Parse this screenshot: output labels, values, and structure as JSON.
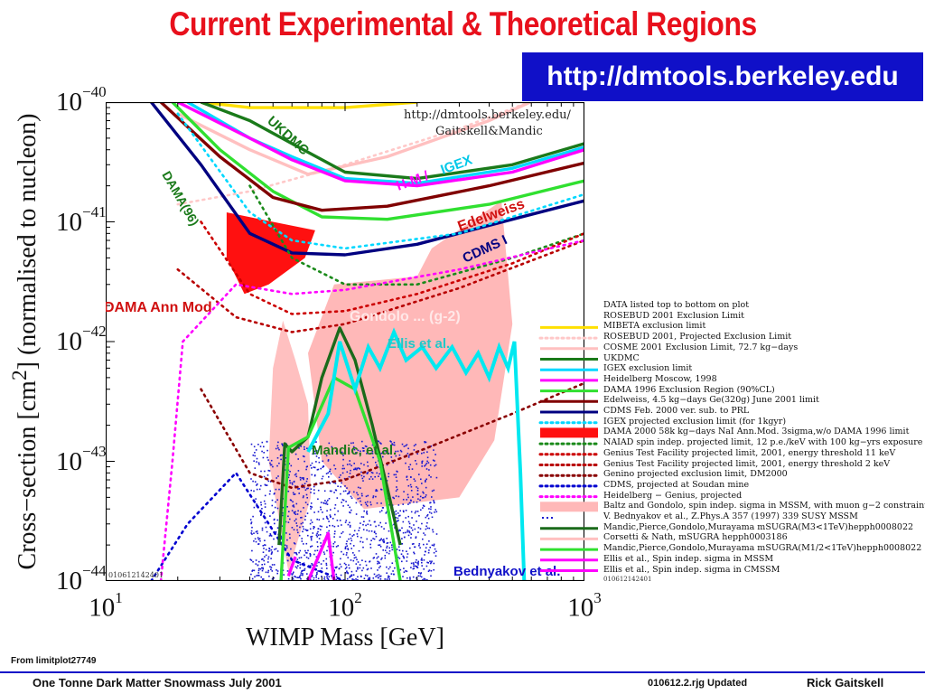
{
  "slide": {
    "title": "Current Experimental & Theoretical Regions",
    "url_box": "http://dmtools.berkeley.edu",
    "from_note": "From limitplot27749",
    "footer_left": "One Tonne Dark Matter Snowmass July 2001",
    "footer_mid": "010612.2.rjg Updated",
    "footer_right": "Rick Gaitskell",
    "colors": {
      "title": "#e8101c",
      "url_box_bg": "#1010c8",
      "footer_rule": "#1010c8"
    }
  },
  "chart_data": {
    "type": "line",
    "xlabel": "WIMP Mass [GeV]",
    "ylabel_parts": [
      "Cross−section [cm",
      "2",
      "] (normalised to nucleon)"
    ],
    "x_scale": "log",
    "y_scale": "log",
    "xlim": [
      10,
      1000
    ],
    "ylim": [
      1e-44,
      1e-40
    ],
    "x_ticks": [
      {
        "value": 10,
        "base": "10",
        "exp": "1"
      },
      {
        "value": 100,
        "base": "10",
        "exp": "2"
      },
      {
        "value": 1000,
        "base": "10",
        "exp": "3"
      }
    ],
    "y_ticks": [
      {
        "value": 1e-40,
        "base": "10",
        "exp": "−40"
      },
      {
        "value": 1e-41,
        "base": "10",
        "exp": "−41"
      },
      {
        "value": 1e-42,
        "base": "10",
        "exp": "−42"
      },
      {
        "value": 1e-43,
        "base": "10",
        "exp": "−43"
      },
      {
        "value": 1e-44,
        "base": "10",
        "exp": "−44"
      }
    ],
    "plot_header": [
      "http://dmtools.berkeley.edu/",
      "Gaitskell&Mandic"
    ],
    "plot_id": "010612142401",
    "series": [
      {
        "name": "MIBETA exclusion limit",
        "color": "#ffe000",
        "style": "solid",
        "points": [
          [
            25,
            1e-40
          ],
          [
            40,
            9e-41
          ],
          [
            100,
            9e-41
          ],
          [
            200,
            1e-40
          ]
        ]
      },
      {
        "name": "ROSEBUD 2001, Projected Exclusion Limit",
        "color": "#ffc8c8",
        "style": "dotted",
        "points": [
          [
            20,
            1.4e-41
          ],
          [
            40,
            1.8e-41
          ],
          [
            100,
            3e-41
          ],
          [
            300,
            6e-41
          ],
          [
            1000,
            1.5e-40
          ]
        ]
      },
      {
        "name": "COSME 2001 Exclusion Limit, 72.7 kg−days",
        "color": "#ffc0c0",
        "style": "solid",
        "points": [
          [
            20,
            8e-41
          ],
          [
            40,
            4e-41
          ],
          [
            70,
            2.5e-41
          ],
          [
            150,
            3.5e-41
          ],
          [
            400,
            7e-41
          ],
          [
            1000,
            1.6e-40
          ]
        ]
      },
      {
        "name": "UKDMC",
        "color": "#1a7a1a",
        "style": "solid",
        "points": [
          [
            25,
            1e-40
          ],
          [
            40,
            7e-41
          ],
          [
            60,
            4.5e-41
          ],
          [
            100,
            2.6e-41
          ],
          [
            200,
            2.3e-41
          ],
          [
            500,
            3e-41
          ],
          [
            1000,
            4.5e-41
          ]
        ]
      },
      {
        "name": "IGEX exclusion limit",
        "color": "#00d8ff",
        "style": "solid",
        "points": [
          [
            22,
            1e-40
          ],
          [
            40,
            5e-41
          ],
          [
            60,
            3.5e-41
          ],
          [
            100,
            2.3e-41
          ],
          [
            200,
            2.1e-41
          ],
          [
            500,
            2.8e-41
          ],
          [
            1000,
            4.2e-41
          ]
        ]
      },
      {
        "name": "Heidelberg Moscow, 1998",
        "color": "#ff00ff",
        "style": "solid",
        "points": [
          [
            20,
            1e-40
          ],
          [
            40,
            5e-41
          ],
          [
            60,
            3.3e-41
          ],
          [
            100,
            2.2e-41
          ],
          [
            200,
            2e-41
          ],
          [
            500,
            2.6e-41
          ],
          [
            1000,
            4e-41
          ]
        ]
      },
      {
        "name": "DAMA 1996 Exclusion Region (90%CL)",
        "color": "#30e030",
        "style": "solid",
        "points": [
          [
            19,
            1e-40
          ],
          [
            30,
            4e-41
          ],
          [
            50,
            1.8e-41
          ],
          [
            80,
            1.1e-41
          ],
          [
            150,
            1.05e-41
          ],
          [
            400,
            1.4e-41
          ],
          [
            1000,
            2.2e-41
          ]
        ]
      },
      {
        "name": "Edelweiss, 4.5 kg−days Ge(320g) June 2001 limit",
        "color": "#800000",
        "style": "solid",
        "points": [
          [
            17,
            1e-40
          ],
          [
            30,
            3.5e-41
          ],
          [
            50,
            1.6e-41
          ],
          [
            80,
            1.25e-41
          ],
          [
            150,
            1.35e-41
          ],
          [
            400,
            2e-41
          ],
          [
            1000,
            3.1e-41
          ]
        ]
      },
      {
        "name": "CDMS Feb. 2000 ver. sub. to PRL",
        "color": "#000080",
        "style": "solid",
        "points": [
          [
            15.5,
            1e-40
          ],
          [
            25,
            3e-41
          ],
          [
            40,
            8e-42
          ],
          [
            60,
            5.5e-42
          ],
          [
            100,
            5.3e-42
          ],
          [
            200,
            6.5e-42
          ],
          [
            500,
            1.05e-41
          ],
          [
            1000,
            1.5e-41
          ]
        ]
      },
      {
        "name": "IGEX projected exclusion limit (for 1kgyr)",
        "color": "#00d8ff",
        "style": "dotted",
        "points": [
          [
            20,
            8e-41
          ],
          [
            40,
            1.2e-41
          ],
          [
            60,
            7e-42
          ],
          [
            100,
            6e-42
          ],
          [
            300,
            8e-42
          ],
          [
            1000,
            1.7e-41
          ]
        ]
      },
      {
        "name": "NAIAD spin indep. projected limit, 12 p.e./keV with 100 kg−yrs exposure",
        "color": "#1a8a1a",
        "style": "dotted",
        "points": [
          [
            40,
            2e-41
          ],
          [
            60,
            5e-42
          ],
          [
            100,
            3e-42
          ],
          [
            200,
            3e-42
          ],
          [
            500,
            5e-42
          ],
          [
            1000,
            8e-42
          ]
        ]
      },
      {
        "name": "Genius Test Facility projected limit, 2001, energy threshold 11 keV",
        "color": "#cc0000",
        "style": "dotted",
        "points": [
          [
            25,
            1e-41
          ],
          [
            40,
            2.5e-42
          ],
          [
            60,
            1.7e-42
          ],
          [
            100,
            1.8e-42
          ],
          [
            200,
            2.5e-42
          ],
          [
            500,
            4.5e-42
          ],
          [
            1000,
            8e-42
          ]
        ]
      },
      {
        "name": "Genius Test Facility projected limit, 2001, energy threshold 2 keV",
        "color": "#b80000",
        "style": "dotted",
        "points": [
          [
            20,
            4e-42
          ],
          [
            35,
            1.6e-42
          ],
          [
            60,
            1.2e-42
          ],
          [
            100,
            1.4e-42
          ],
          [
            300,
            2.8e-42
          ],
          [
            1000,
            7e-42
          ]
        ]
      },
      {
        "name": "Genino projected exclusion limit, DM2000",
        "color": "#8a0000",
        "style": "dotted",
        "points": [
          [
            25,
            4e-43
          ],
          [
            40,
            8e-44
          ],
          [
            60,
            6e-44
          ],
          [
            100,
            7e-44
          ],
          [
            200,
            1.2e-43
          ],
          [
            500,
            2.5e-43
          ],
          [
            1000,
            4.5e-43
          ]
        ]
      },
      {
        "name": "CDMS, projected at Soudan mine",
        "color": "#0000d0",
        "style": "dotted",
        "points": [
          [
            15.5,
            1e-44
          ],
          [
            22,
            3e-44
          ],
          [
            35,
            8e-44
          ],
          [
            60,
            1.5e-44
          ],
          [
            100,
            1e-44
          ]
        ]
      },
      {
        "name": "Heidelberg − Genius, projected",
        "color": "#ff00ff",
        "style": "dotted",
        "points": [
          [
            17,
            1e-44
          ],
          [
            19,
            1e-43
          ],
          [
            21,
            1e-42
          ],
          [
            35,
            3e-42
          ],
          [
            60,
            2.5e-42
          ],
          [
            100,
            2.7e-42
          ],
          [
            300,
            4e-42
          ],
          [
            1000,
            7e-42
          ]
        ]
      },
      {
        "name": "Mandic,Pierce,Gondolo,Murayama mSUGRA(M3<1TeV)hepph0008022",
        "color": "#1a6a1a",
        "style": "solid",
        "points": [
          [
            53,
            2e-44
          ],
          [
            56,
            1.4e-43
          ],
          [
            60,
            1.2e-43
          ],
          [
            70,
            1.6e-43
          ],
          [
            80,
            5e-43
          ],
          [
            95,
            1.3e-42
          ],
          [
            110,
            7e-43
          ],
          [
            130,
            2e-43
          ],
          [
            150,
            6e-44
          ],
          [
            170,
            2e-44
          ]
        ]
      },
      {
        "name": "Mandic,Pierce,Gondolo,Murayama mSUGRA(M1/2<1TeV)hepph0008022",
        "color": "#30e030",
        "style": "solid",
        "points": [
          [
            54,
            1e-44
          ],
          [
            58,
            1.3e-43
          ],
          [
            70,
            1.6e-43
          ],
          [
            90,
            5e-43
          ],
          [
            110,
            4e-43
          ],
          [
            140,
            1e-43
          ],
          [
            170,
            1e-44
          ]
        ]
      },
      {
        "name": "Ellis et al., Spin indep. sigma in MSSM",
        "color": "#ff00ff",
        "style": "solid",
        "points": [
          [
            70,
            1e-44
          ],
          [
            85,
            2.5e-44
          ],
          [
            90,
            1e-44
          ]
        ]
      },
      {
        "name": "Ellis et al., Spin indep. sigma in CMSSM",
        "color": "#ff00ff",
        "style": "solid",
        "points": [
          [
            58,
            1.1e-44
          ],
          [
            62,
            1.6e-44
          ]
        ]
      }
    ],
    "regions": [
      {
        "name": "DAMA 2000 58k kg−days NaI Ann.Mod. 3sigma,w/o DAMA 1996 limit",
        "color": "#ff1010",
        "points": [
          [
            32,
            1.2e-41
          ],
          [
            50,
            1e-41
          ],
          [
            75,
            8.5e-42
          ],
          [
            68,
            5e-42
          ],
          [
            48,
            3e-42
          ],
          [
            38,
            2.5e-42
          ],
          [
            32,
            5e-42
          ]
        ]
      },
      {
        "name": "Baltz and Gondolo, spin indep. sigma in MSSM, with muon g−2 constraint",
        "color": "#ffb8b8",
        "points": [
          [
            90,
            3e-42
          ],
          [
            200,
            3.5e-42
          ],
          [
            230,
            6e-42
          ],
          [
            450,
            1.5e-41
          ],
          [
            500,
            1.4e-42
          ],
          [
            420,
            1.5e-43
          ],
          [
            300,
            5e-44
          ],
          [
            120,
            4e-44
          ],
          [
            80,
            1e-43
          ],
          [
            70,
            8e-43
          ]
        ]
      },
      {
        "name": "Corsetti & Nath, mSUGRA hepph0003186",
        "color": "#ffc0c0",
        "points": [
          [
            55,
            1.5e-42
          ],
          [
            62,
            7e-43
          ],
          [
            70,
            3e-43
          ],
          [
            72,
            5e-44
          ],
          [
            58,
            1.2e-44
          ],
          [
            48,
            1e-43
          ],
          [
            50,
            6e-43
          ]
        ]
      }
    ],
    "theory_band": {
      "name": "Ellis et al.",
      "color": "#00e8f0",
      "points": [
        [
          70,
          1.2e-43
        ],
        [
          85,
          2.5e-43
        ],
        [
          95,
          1e-42
        ],
        [
          110,
          4e-43
        ],
        [
          125,
          9e-43
        ],
        [
          140,
          6e-43
        ],
        [
          160,
          1.2e-42
        ],
        [
          180,
          7e-43
        ],
        [
          210,
          9e-43
        ],
        [
          240,
          6e-43
        ],
        [
          280,
          9e-43
        ],
        [
          320,
          5.5e-43
        ],
        [
          360,
          8e-43
        ],
        [
          400,
          5e-43
        ],
        [
          440,
          9e-43
        ],
        [
          480,
          6e-43
        ],
        [
          510,
          1e-42
        ],
        [
          540,
          8e-44
        ],
        [
          560,
          1e-44
        ]
      ]
    },
    "scatter_region": {
      "name": "Bednyakov et al.",
      "color": "#1818d0",
      "x_range": [
        40,
        240
      ],
      "y_range": [
        1e-44,
        1.5e-43
      ]
    },
    "annotations": [
      {
        "text": "UKDMC",
        "color": "#1a7a1a"
      },
      {
        "text": "DAMA(96)",
        "color": "#1a7a1a"
      },
      {
        "text": "H-M / ",
        "color": "#ff00ff"
      },
      {
        "text": "IGEX",
        "color": "#00c8e8"
      },
      {
        "text": "Edelweiss",
        "color": "#d01010"
      },
      {
        "text": "CDMS I",
        "color": "#000080"
      },
      {
        "text": "DAMA Ann Mod",
        "color": "#d01010"
      },
      {
        "text": "Gondolo ... (g-2)",
        "color": "#ffe8e8"
      },
      {
        "text": "Ellis et al.",
        "color": "#20c8c8"
      },
      {
        "text": "Mandic, et al.",
        "color": "#1a7a1a"
      },
      {
        "text": "Bednyakov et al.",
        "color": "#1010c8"
      }
    ],
    "legend": {
      "placement": "right",
      "title_lines": [
        "DATA listed top to bottom on plot",
        "ROSEBUD 2001 Exclusion Limit"
      ],
      "entries": [
        "MIBETA exclusion limit",
        "ROSEBUD 2001, Projected Exclusion Limit",
        "COSME 2001 Exclusion Limit, 72.7 kg−days",
        "UKDMC",
        "IGEX exclusion limit",
        "Heidelberg Moscow, 1998",
        "DAMA 1996 Exclusion Region (90%CL)",
        "Edelweiss, 4.5 kg−days Ge(320g) June 2001 limit",
        "CDMS Feb. 2000 ver. sub. to PRL",
        "IGEX projected exclusion limit (for 1kgyr)",
        "DAMA 2000 58k kg−days NaI Ann.Mod. 3sigma,w/o DAMA 1996 limit",
        "NAIAD spin indep. projected limit, 12 p.e./keV with 100 kg−yrs exposure",
        "Genius Test Facility projected limit, 2001, energy threshold 11 keV",
        "Genius Test Facility projected limit, 2001, energy threshold 2 keV",
        "Genino projected exclusion limit, DM2000",
        "CDMS, projected at Soudan mine",
        "Heidelberg − Genius, projected",
        "Baltz and Gondolo, spin indep. sigma in MSSM, with muon g−2 constraint",
        "V. Bednyakov et al., Z.Phys.A 357 (1997) 339 SUSY MSSM",
        "Mandic,Pierce,Gondolo,Murayama mSUGRA(M3<1TeV)hepph0008022",
        "Corsetti & Nath, mSUGRA hepph0003186",
        "Mandic,Pierce,Gondolo,Murayama mSUGRA(M1/2<1TeV)hepph0008022",
        "Ellis et al., Spin indep. sigma in MSSM",
        "Ellis et al., Spin indep. sigma in CMSSM"
      ],
      "swatches": [
        {
          "color": "#ffe000",
          "style": "solid"
        },
        {
          "color": "#ffc8c8",
          "style": "dotted"
        },
        {
          "color": "#ffc0c0",
          "style": "solid"
        },
        {
          "color": "#1a7a1a",
          "style": "solid"
        },
        {
          "color": "#00d8ff",
          "style": "solid"
        },
        {
          "color": "#ff00ff",
          "style": "solid"
        },
        {
          "color": "#30e030",
          "style": "solid"
        },
        {
          "color": "#800000",
          "style": "solid"
        },
        {
          "color": "#000080",
          "style": "solid"
        },
        {
          "color": "#00d8ff",
          "style": "dotted"
        },
        {
          "color": "#ff1010",
          "style": "fill"
        },
        {
          "color": "#1a8a1a",
          "style": "dotted"
        },
        {
          "color": "#cc0000",
          "style": "dotted"
        },
        {
          "color": "#b80000",
          "style": "dotted"
        },
        {
          "color": "#8a0000",
          "style": "dotted"
        },
        {
          "color": "#0000d0",
          "style": "dotted"
        },
        {
          "color": "#ff00ff",
          "style": "dotted"
        },
        {
          "color": "#ffb8b8",
          "style": "fill"
        },
        {
          "color": "#1818d0",
          "style": "dots"
        },
        {
          "color": "#1a6a1a",
          "style": "solid"
        },
        {
          "color": "#ffc0c0",
          "style": "solid"
        },
        {
          "color": "#30e030",
          "style": "solid"
        },
        {
          "color": "#ff00ff",
          "style": "solid"
        },
        {
          "color": "#ff00ff",
          "style": "solid"
        }
      ],
      "id": "010612142401"
    }
  }
}
